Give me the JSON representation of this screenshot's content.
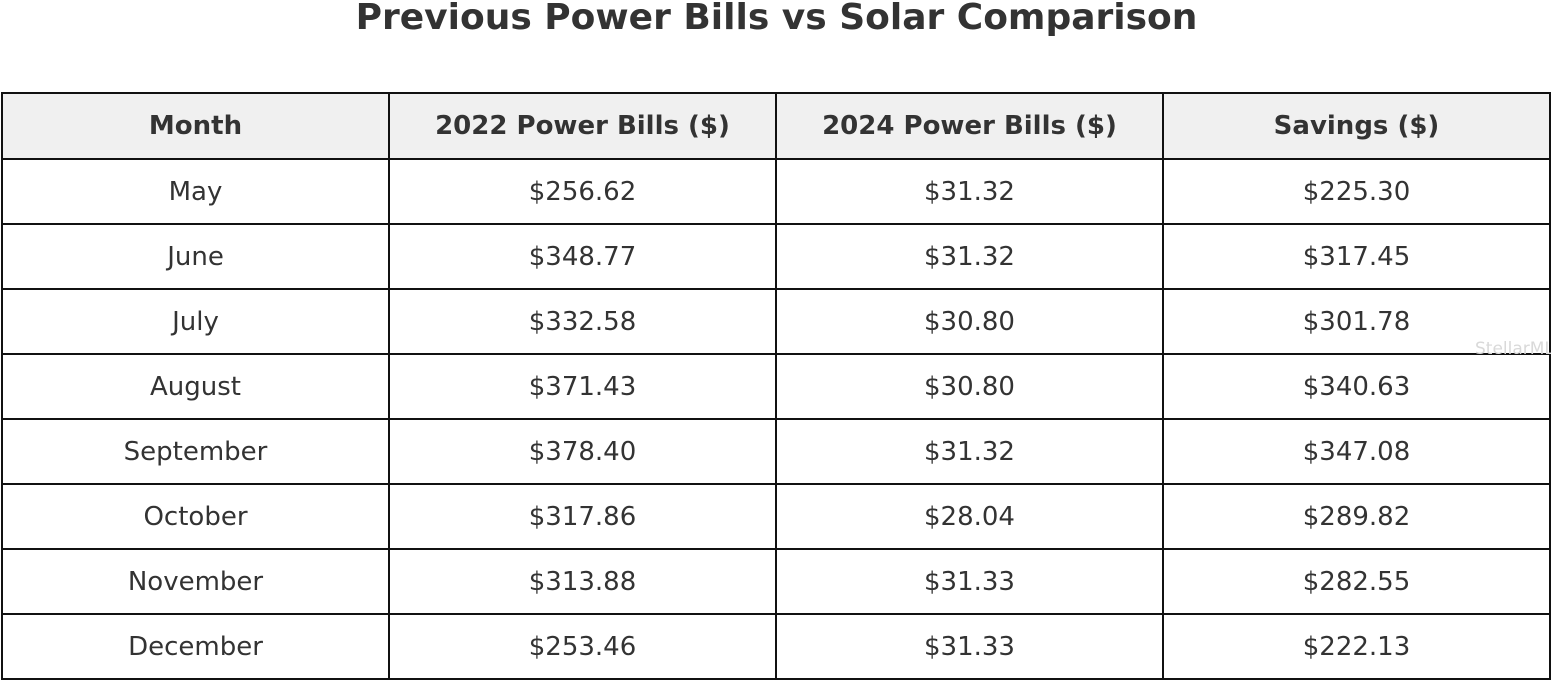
{
  "title": "Previous Power Bills vs Solar Comparison",
  "watermark": "StellarMLS",
  "table": {
    "headers": [
      "Month",
      "2022 Power Bills ($)",
      "2024 Power Bills ($)",
      "Savings ($)"
    ],
    "rows": [
      [
        "May",
        "$256.62",
        "$31.32",
        "$225.30"
      ],
      [
        "June",
        "$348.77",
        "$31.32",
        "$317.45"
      ],
      [
        "July",
        "$332.58",
        "$30.80",
        "$301.78"
      ],
      [
        "August",
        "$371.43",
        "$30.80",
        "$340.63"
      ],
      [
        "September",
        "$378.40",
        "$31.32",
        "$347.08"
      ],
      [
        "October",
        "$317.86",
        "$28.04",
        "$289.82"
      ],
      [
        "November",
        "$313.88",
        "$31.33",
        "$282.55"
      ],
      [
        "December",
        "$253.46",
        "$31.33",
        "$222.13"
      ]
    ]
  },
  "colors": {
    "header_background": "#f0f0f0",
    "text": "#333333",
    "border": "#111111"
  }
}
